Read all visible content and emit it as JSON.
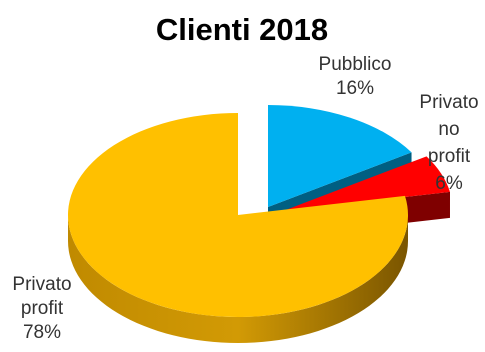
{
  "chart_data": {
    "type": "pie",
    "style": "3d-exploded",
    "title": "Clienti 2018",
    "slices": [
      {
        "label_lines": [
          "Pubblico"
        ],
        "percent_label": "16%",
        "value": 16,
        "color": "#00b0f0",
        "side_color": "#005f82"
      },
      {
        "label_lines": [
          "Privato",
          "no",
          "profit"
        ],
        "percent_label": "6%",
        "value": 6,
        "color": "#ff0000",
        "side_color": "#7f0000"
      },
      {
        "label_lines": [
          "Privato",
          "profit"
        ],
        "percent_label": "78%",
        "value": 78,
        "color": "#ffc000",
        "side_color": "#a07000"
      }
    ],
    "legend": "none"
  }
}
